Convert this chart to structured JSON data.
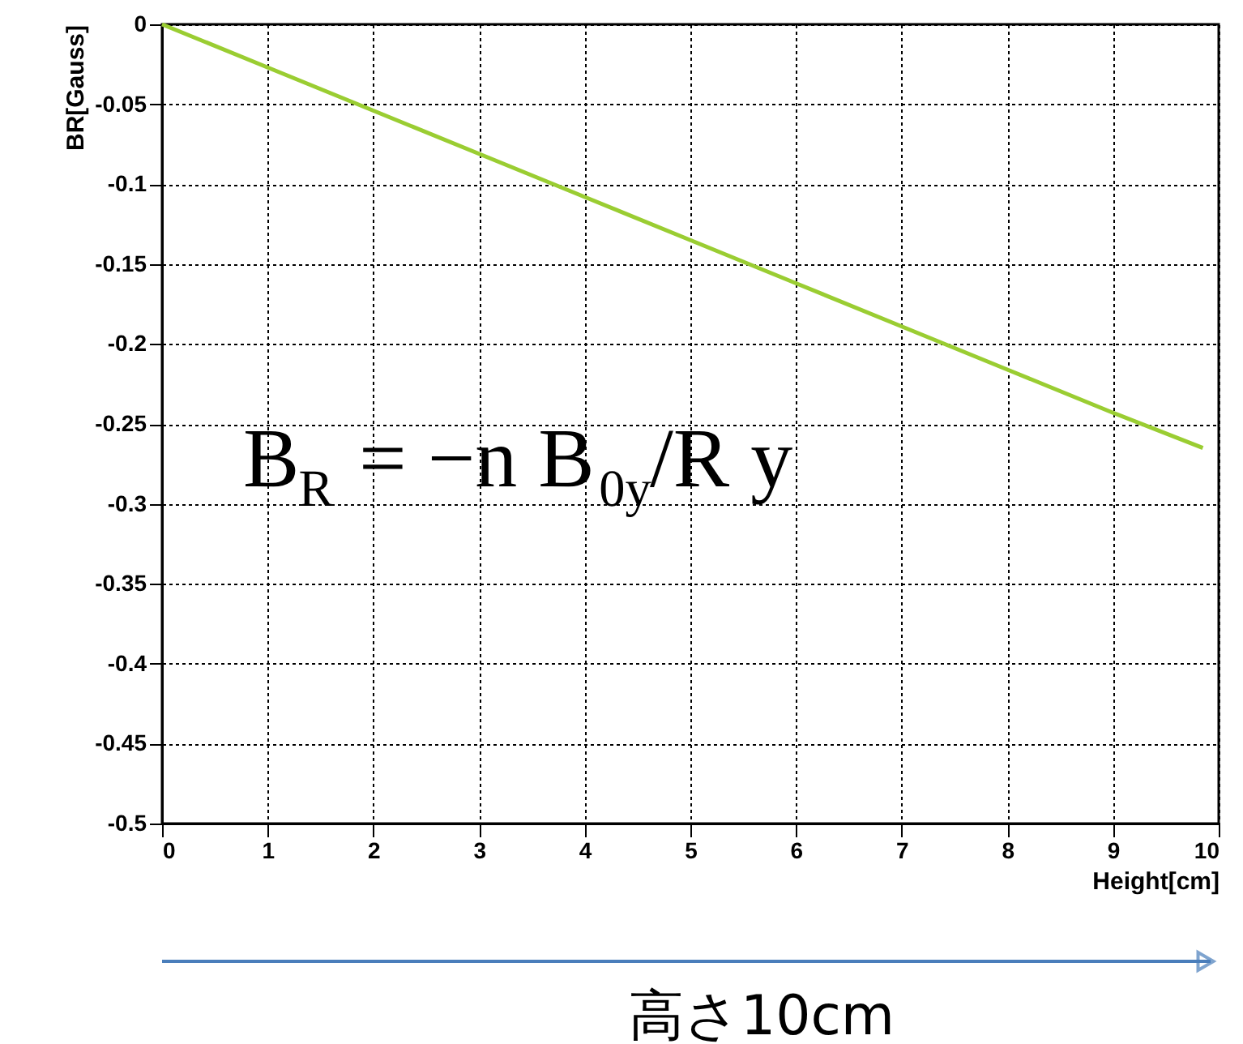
{
  "chart_data": {
    "type": "line",
    "xlabel": "Height[cm]",
    "ylabel": "BR[Gauss]",
    "x": [
      0,
      1,
      2,
      3,
      4,
      5,
      6,
      7,
      8,
      9,
      9.85
    ],
    "series": [
      {
        "color": "#9acd32",
        "values": [
          0,
          -0.027,
          -0.054,
          -0.081,
          -0.108,
          -0.135,
          -0.162,
          -0.189,
          -0.216,
          -0.243,
          -0.265
        ]
      }
    ],
    "xlim": [
      0,
      10
    ],
    "xticks": [
      0,
      1,
      2,
      3,
      4,
      5,
      6,
      7,
      8,
      9,
      10
    ],
    "ylim": [
      -0.5,
      0
    ],
    "yticks": [
      -0.5,
      -0.45,
      -0.4,
      -0.35,
      -0.3,
      -0.25,
      -0.2,
      -0.15,
      -0.1,
      -0.05,
      0
    ],
    "grid": true,
    "marker": "none",
    "line_style": "solid",
    "annotations": [
      "B$_{R}$ = −n B$_{0y}$/R y",
      "高さ10cm"
    ]
  }
}
